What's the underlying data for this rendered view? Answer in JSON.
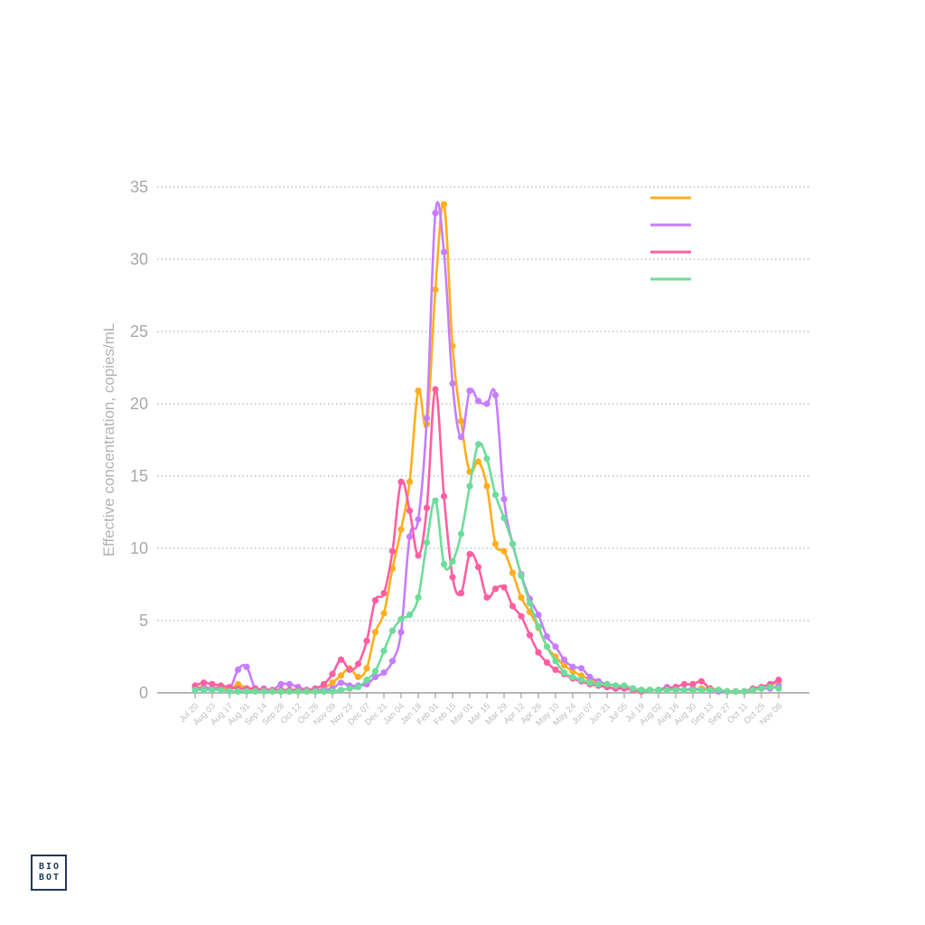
{
  "chart_data": {
    "type": "line",
    "title": "",
    "xlabel": "",
    "ylabel": "Effective concentration, copies/mL",
    "ylim": [
      0,
      35
    ],
    "yticks": [
      0,
      5,
      10,
      15,
      20,
      25,
      30,
      35
    ],
    "grid": true,
    "legend_position": "top-right",
    "x_tick_labels": [
      "Jul 20",
      "Aug 03",
      "Aug 17",
      "Aug 31",
      "Sep 14",
      "Sep 28",
      "Oct 12",
      "Oct 26",
      "Nov 09",
      "Nov 23",
      "Dec 07",
      "Dec 21",
      "Jan 04",
      "Jan 18",
      "Feb 01",
      "Feb 15",
      "Mar 01",
      "Mar 15",
      "Mar 29",
      "Apr 12",
      "Apr 26",
      "May 10",
      "May 24",
      "Jun 07",
      "Jun 21",
      "Jul 05",
      "Jul 19",
      "Aug 02",
      "Aug 16",
      "Aug 30",
      "Sep 13",
      "Sep 27",
      "Oct 11",
      "Oct 25",
      "Nov 08"
    ],
    "points_per_tick_interval": 2,
    "series": [
      {
        "name": "",
        "color": "#FFAE1F",
        "values": [
          0.3,
          0.4,
          0.3,
          0.4,
          0.2,
          0.6,
          0.3,
          0.2,
          0.2,
          0.1,
          0.1,
          0.1,
          0.1,
          0.1,
          0.1,
          0.3,
          0.7,
          1.2,
          1.7,
          1.1,
          1.7,
          4.2,
          5.5,
          8.6,
          11.3,
          14.6,
          20.9,
          18.6,
          27.9,
          33.8,
          24.0,
          18.8,
          15.3,
          16.0,
          14.3,
          10.3,
          9.8,
          8.3,
          6.6,
          5.6,
          4.5,
          3.2,
          2.5,
          1.9,
          1.5,
          1.2,
          0.9,
          0.7,
          0.6,
          0.5,
          0.4,
          0.3,
          0.2,
          0.2,
          0.2,
          0.3,
          0.2,
          0.2,
          0.2,
          0.3,
          0.3,
          0.2,
          0.1,
          0.1,
          0.1,
          0.2,
          0.3,
          0.5,
          0.8
        ]
      },
      {
        "name": "",
        "color": "#C77DFF",
        "values": [
          0.3,
          0.3,
          0.3,
          0.3,
          0.2,
          1.6,
          1.8,
          0.3,
          0.3,
          0.2,
          0.6,
          0.6,
          0.4,
          0.2,
          0.2,
          0.2,
          0.3,
          0.7,
          0.5,
          0.5,
          0.6,
          1.1,
          1.4,
          2.2,
          4.2,
          10.8,
          12.0,
          19.0,
          33.2,
          30.5,
          21.4,
          17.7,
          20.9,
          20.2,
          20.0,
          20.6,
          13.4,
          10.3,
          8.2,
          6.5,
          5.4,
          3.9,
          3.2,
          2.3,
          1.8,
          1.7,
          1.1,
          0.8,
          0.6,
          0.5,
          0.4,
          0.3,
          0.2,
          0.2,
          0.2,
          0.4,
          0.3,
          0.2,
          0.3,
          0.2,
          0.2,
          0.1,
          0.1,
          0.1,
          0.1,
          0.2,
          0.3,
          0.3,
          0.5
        ]
      },
      {
        "name": "",
        "color": "#FF5FA2",
        "values": [
          0.5,
          0.7,
          0.6,
          0.5,
          0.4,
          0.3,
          0.3,
          0.3,
          0.2,
          0.2,
          0.2,
          0.2,
          0.2,
          0.2,
          0.3,
          0.6,
          1.3,
          2.3,
          1.6,
          2.0,
          3.6,
          6.4,
          6.9,
          9.8,
          14.6,
          12.6,
          9.5,
          12.8,
          21.0,
          13.6,
          8.0,
          6.9,
          9.6,
          8.7,
          6.6,
          7.2,
          7.3,
          6.0,
          5.3,
          4.0,
          2.8,
          2.1,
          1.6,
          1.3,
          1.0,
          0.8,
          0.6,
          0.5,
          0.4,
          0.3,
          0.3,
          0.2,
          0.1,
          0.2,
          0.2,
          0.3,
          0.4,
          0.6,
          0.6,
          0.8,
          0.3,
          0.2,
          0.1,
          0.1,
          0.1,
          0.3,
          0.4,
          0.6,
          0.9
        ]
      },
      {
        "name": "",
        "color": "#6EDC9A",
        "values": [
          0.2,
          0.2,
          0.2,
          0.2,
          0.1,
          0.1,
          0.1,
          0.1,
          0.1,
          0.1,
          0.1,
          0.1,
          0.1,
          0.1,
          0.1,
          0.1,
          0.1,
          0.2,
          0.3,
          0.4,
          0.9,
          1.5,
          2.9,
          4.3,
          5.1,
          5.4,
          6.6,
          10.4,
          13.3,
          8.9,
          9.1,
          11.0,
          14.3,
          17.2,
          16.2,
          13.7,
          12.1,
          10.3,
          8.1,
          6.2,
          4.6,
          3.2,
          2.2,
          1.4,
          1.1,
          0.9,
          0.7,
          0.6,
          0.6,
          0.5,
          0.5,
          0.3,
          0.2,
          0.2,
          0.2,
          0.2,
          0.2,
          0.2,
          0.2,
          0.2,
          0.2,
          0.2,
          0.1,
          0.1,
          0.1,
          0.2,
          0.3,
          0.4,
          0.3
        ]
      }
    ]
  },
  "logo": {
    "line1": "BIO",
    "line2": "BOT"
  }
}
